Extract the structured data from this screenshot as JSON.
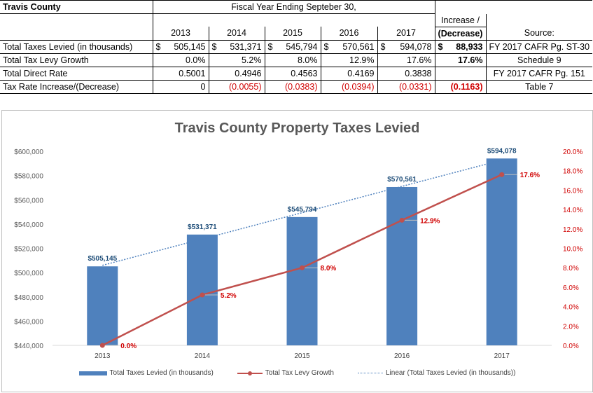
{
  "table": {
    "entity": "Travis County",
    "fiscal_header": "Fiscal Year Ending Septeber 30,",
    "increase_header_1": "Increase /",
    "increase_header_2": "(Decrease)",
    "source_header": "Source:",
    "years": [
      "2013",
      "2014",
      "2015",
      "2016",
      "2017"
    ],
    "rows": [
      {
        "label": "Total Taxes Levied (in thousands)",
        "values": [
          "505,145",
          "531,371",
          "545,794",
          "570,561",
          "594,078"
        ],
        "currency": "$",
        "increase": "88,933",
        "source": "FY 2017 CAFR Pg. ST-30"
      },
      {
        "label": "Total Tax Levy Growth",
        "values": [
          "0.0%",
          "5.2%",
          "8.0%",
          "12.9%",
          "17.6%"
        ],
        "increase": "17.6%",
        "source": "Schedule 9"
      },
      {
        "label": "Total Direct Rate",
        "values": [
          "0.5001",
          "0.4946",
          "0.4563",
          "0.4169",
          "0.3838"
        ],
        "increase": "",
        "source": "FY 2017 CAFR Pg. 151"
      },
      {
        "label": "Tax Rate Increase/(Decrease)",
        "values": [
          "0",
          "(0.0055)",
          "(0.0383)",
          "(0.0394)",
          "(0.0331)"
        ],
        "increase": "(0.1163)",
        "source": "Table 7"
      }
    ],
    "colors": {
      "negative": "#d00000"
    }
  },
  "chart_data": {
    "type": "bar",
    "title": "Travis County Property Taxes Levied",
    "categories": [
      "2013",
      "2014",
      "2015",
      "2016",
      "2017"
    ],
    "series": [
      {
        "name": "Total Taxes Levied (in thousands)",
        "type": "bar",
        "axis": "left",
        "values": [
          505145,
          531371,
          545794,
          570561,
          594078
        ],
        "labels": [
          "$505,145",
          "$531,371",
          "$545,794",
          "$570,561",
          "$594,078"
        ],
        "color": "#4f81bd"
      },
      {
        "name": "Total Tax Levy Growth",
        "type": "line",
        "axis": "right",
        "values": [
          0.0,
          5.2,
          8.0,
          12.9,
          17.6
        ],
        "labels": [
          "0.0%",
          "5.2%",
          "8.0%",
          "12.9%",
          "17.6%"
        ],
        "color": "#c0504d"
      },
      {
        "name": "Linear (Total Taxes Levied (in thousands))",
        "type": "trendline",
        "axis": "left",
        "color": "#4f81bd"
      }
    ],
    "ylim": [
      440000,
      600000
    ],
    "yticks": [
      "$440,000",
      "$460,000",
      "$480,000",
      "$500,000",
      "$520,000",
      "$540,000",
      "$560,000",
      "$580,000",
      "$600,000"
    ],
    "y2lim": [
      0,
      20
    ],
    "y2ticks": [
      "0.0%",
      "2.0%",
      "4.0%",
      "6.0%",
      "8.0%",
      "10.0%",
      "12.0%",
      "14.0%",
      "16.0%",
      "18.0%",
      "20.0%"
    ],
    "y2_color": "#d00000",
    "grid": true,
    "legend": "bottom"
  }
}
